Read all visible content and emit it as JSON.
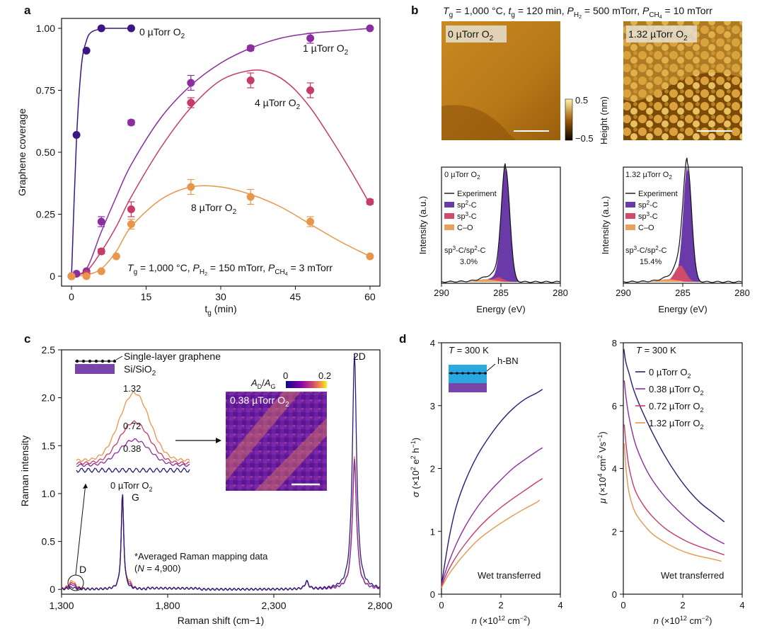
{
  "panels": {
    "a": {
      "letter": "a"
    },
    "b": {
      "letter": "b",
      "header": "Tg = 1,000 °C, tg = 120 min, PH2 = 500 mTorr, PCH4 = 10 mTorr"
    },
    "c": {
      "letter": "c"
    },
    "d": {
      "letter": "d"
    }
  },
  "chart_data": [
    {
      "id": "a",
      "type": "scatter",
      "title": "",
      "xlabel": "tg (min)",
      "ylabel": "Graphene coverage",
      "xlim": [
        -2,
        62
      ],
      "ylim": [
        -0.04,
        1.04
      ],
      "xticks": [
        0,
        15,
        30,
        45,
        60
      ],
      "yticks": [
        0,
        0.25,
        0.5,
        0.75,
        1.0
      ],
      "ytick_labels": [
        "0",
        "0.25",
        "0.50",
        "0.75",
        "1.00"
      ],
      "annotation": "Tg = 1,000 °C, PH2 = 150 mTorr, PCH4 = 3 mTorr",
      "series": [
        {
          "name": "0 µTorr O2",
          "color": "#3b1684",
          "x": [
            0,
            1,
            3,
            6,
            12
          ],
          "y": [
            0.0,
            0.57,
            0.91,
            1.0,
            1.0
          ],
          "err": [
            0,
            0,
            0,
            0,
            0
          ],
          "fit_x": [
            0,
            1,
            2,
            3,
            4,
            6,
            8,
            12
          ],
          "fit_y": [
            0.0,
            0.55,
            0.85,
            0.95,
            0.985,
            0.998,
            1.0,
            1.0
          ]
        },
        {
          "name": "1 µTorr O2",
          "color": "#8a2ea0",
          "x": [
            0,
            1,
            3,
            6,
            12,
            24,
            36,
            48,
            60
          ],
          "y": [
            0.0,
            0.01,
            0.02,
            0.22,
            0.62,
            0.78,
            0.92,
            0.96,
            1.0
          ],
          "err": [
            0,
            0,
            0,
            0.02,
            0.01,
            0.03,
            0.01,
            0.02,
            0
          ],
          "fit_x": [
            0,
            3,
            6,
            9,
            12,
            18,
            24,
            30,
            36,
            42,
            48,
            54,
            60
          ],
          "fit_y": [
            0.0,
            0.03,
            0.18,
            0.32,
            0.45,
            0.64,
            0.77,
            0.86,
            0.92,
            0.96,
            0.98,
            0.99,
            1.0
          ]
        },
        {
          "name": "4 µTorr O2",
          "color": "#c73a6a",
          "x": [
            0,
            3,
            6,
            12,
            24,
            36,
            48,
            60
          ],
          "y": [
            0.0,
            0.01,
            0.1,
            0.27,
            0.7,
            0.79,
            0.75,
            0.3
          ],
          "err": [
            0,
            0,
            0.01,
            0.03,
            0.02,
            0.03,
            0.03,
            0.01
          ],
          "fit_x": [
            0,
            3,
            6,
            9,
            12,
            18,
            24,
            30,
            36,
            40,
            44,
            48,
            52,
            56,
            60
          ],
          "fit_y": [
            0.0,
            0.02,
            0.1,
            0.2,
            0.32,
            0.52,
            0.68,
            0.79,
            0.83,
            0.82,
            0.77,
            0.68,
            0.56,
            0.43,
            0.29
          ]
        },
        {
          "name": "8 µTorr O2",
          "color": "#e8964a",
          "x": [
            0,
            3,
            6,
            9,
            12,
            24,
            36,
            48,
            60
          ],
          "y": [
            0.0,
            0.0,
            0.02,
            0.08,
            0.21,
            0.36,
            0.32,
            0.22,
            0.08
          ],
          "err": [
            0,
            0,
            0,
            0,
            0.02,
            0.03,
            0.03,
            0.02,
            0
          ],
          "fit_x": [
            0,
            3,
            6,
            9,
            12,
            18,
            24,
            30,
            36,
            42,
            48,
            54,
            60
          ],
          "fit_y": [
            0.0,
            0.005,
            0.03,
            0.1,
            0.2,
            0.31,
            0.36,
            0.36,
            0.33,
            0.28,
            0.21,
            0.14,
            0.08
          ]
        }
      ]
    },
    {
      "id": "b-xps-left",
      "type": "line",
      "label": "0 µTorr O2",
      "xlabel": "Energy (eV)",
      "ylabel": "Intensity (a.u.)",
      "xlim": [
        290,
        280
      ],
      "xticks": [
        290,
        285,
        280
      ],
      "legend": [
        "Experiment",
        "sp2-C",
        "sp3-C",
        "C–O"
      ],
      "ratio_label": "sp3-C/sp2-C",
      "ratio_value": "3.0%"
    },
    {
      "id": "b-xps-right",
      "type": "line",
      "label": "1.32 µTorr O2",
      "xlabel": "Energy (eV)",
      "ylabel": "Intensity (a.u.)",
      "xlim": [
        290,
        280
      ],
      "xticks": [
        290,
        285,
        280
      ],
      "legend": [
        "Experiment",
        "sp2-C",
        "sp3-C",
        "C–O"
      ],
      "ratio_label": "sp3-C/sp2-C",
      "ratio_value": "15.4%"
    },
    {
      "id": "b-afm",
      "type": "heatmap",
      "images": [
        "0 µTorr O2",
        "1.32 µTorr O2"
      ],
      "colorbar": {
        "label": "Height (nm)",
        "max": "0.5",
        "min": "−0.5"
      }
    },
    {
      "id": "c",
      "type": "line",
      "xlabel": "Raman shift (cm−1)",
      "ylabel": "Raman intensity",
      "xlim": [
        1300,
        2800
      ],
      "ylim": [
        -0.05,
        2.5
      ],
      "xticks": [
        1300,
        1800,
        2300,
        2800
      ],
      "xtick_labels": [
        "1,300",
        "1,800",
        "2,300",
        "2,800"
      ],
      "yticks": [
        0,
        0.5,
        1.0,
        1.5,
        2.0,
        2.5
      ],
      "ytick_labels": [
        "0",
        "0.5",
        "1.0",
        "1.5",
        "2.0",
        "2.5"
      ],
      "peaks": {
        "D": "D",
        "G": "G",
        "2D": "2D"
      },
      "note": "*Averaged Raman mapping data",
      "note2": "(N = 4,900)",
      "inset_labels": [
        "1.32",
        "0.72",
        "0.38",
        "0 µTorr O2"
      ],
      "schematic": [
        "Single-layer graphene",
        "Si/SiO2"
      ],
      "map": {
        "title": "AD/AG",
        "min": "0",
        "max": "0.2",
        "label": "0.38 µTorr O2"
      },
      "series": [
        {
          "name": "0 µTorr O2",
          "color": "#2a1b7a"
        },
        {
          "name": "0.38 µTorr O2",
          "color": "#8a2ea0"
        },
        {
          "name": "0.72 µTorr O2",
          "color": "#c73a6a"
        },
        {
          "name": "1.32 µTorr O2",
          "color": "#e8964a"
        }
      ]
    },
    {
      "id": "d-left",
      "type": "line",
      "xlabel": "n (×10^12 cm−2)",
      "ylabel": "σ (×10^2 e^2 h−1)",
      "xlim": [
        0,
        4
      ],
      "ylim": [
        0,
        4
      ],
      "xticks": [
        0,
        2,
        4
      ],
      "yticks": [
        0,
        1,
        2,
        3,
        4
      ],
      "annotation": "T = 300 K",
      "inset_label": "h-BN",
      "note": "Wet transferred",
      "series": [
        {
          "name": "0 µTorr O2",
          "color": "#2a1b7a",
          "x": [
            0,
            0.15,
            0.3,
            0.5,
            0.8,
            1.2,
            1.6,
            2.0,
            2.4,
            2.8,
            3.2,
            3.4
          ],
          "y": [
            0.15,
            0.6,
            1.0,
            1.4,
            1.8,
            2.2,
            2.5,
            2.75,
            2.95,
            3.1,
            3.2,
            3.26
          ]
        },
        {
          "name": "0.38 µTorr O2",
          "color": "#8a2ea0",
          "x": [
            0,
            0.2,
            0.5,
            0.8,
            1.2,
            1.6,
            2.0,
            2.4,
            2.8,
            3.2,
            3.4
          ],
          "y": [
            0.15,
            0.45,
            0.8,
            1.08,
            1.38,
            1.62,
            1.82,
            2.0,
            2.14,
            2.27,
            2.33
          ]
        },
        {
          "name": "0.72 µTorr O2",
          "color": "#c73a6a",
          "x": [
            0,
            0.2,
            0.5,
            0.8,
            1.2,
            1.6,
            2.0,
            2.4,
            2.8,
            3.2,
            3.4
          ],
          "y": [
            0.12,
            0.35,
            0.6,
            0.8,
            1.03,
            1.22,
            1.38,
            1.52,
            1.65,
            1.78,
            1.84
          ]
        },
        {
          "name": "1.32 µTorr O2",
          "color": "#e8964a",
          "x": [
            0,
            0.2,
            0.5,
            0.8,
            1.2,
            1.6,
            2.0,
            2.4,
            2.8,
            3.2,
            3.3
          ],
          "y": [
            0.1,
            0.28,
            0.48,
            0.65,
            0.85,
            1.0,
            1.13,
            1.25,
            1.36,
            1.46,
            1.5
          ]
        }
      ]
    },
    {
      "id": "d-right",
      "type": "line",
      "xlabel": "n (×10^12 cm−2)",
      "ylabel": "μ (×10^4 cm^2 Vs−1)",
      "xlim": [
        0,
        4
      ],
      "ylim": [
        0,
        8
      ],
      "xticks": [
        0,
        2,
        4
      ],
      "yticks": [
        0,
        2,
        4,
        6,
        8
      ],
      "annotation": "T = 300 K",
      "note": "Wet transferred",
      "series": [
        {
          "name": "0 µTorr O2",
          "color": "#2a1b7a",
          "x": [
            0.02,
            0.08,
            0.2,
            0.35,
            0.6,
            1.0,
            1.4,
            1.8,
            2.2,
            2.6,
            3.0,
            3.4
          ],
          "y": [
            7.8,
            7.4,
            7.0,
            6.5,
            5.9,
            5.1,
            4.4,
            3.8,
            3.3,
            2.9,
            2.6,
            2.3
          ]
        },
        {
          "name": "0.38 µTorr O2",
          "color": "#8a2ea0",
          "x": [
            0.03,
            0.1,
            0.2,
            0.4,
            0.7,
            1.0,
            1.4,
            1.8,
            2.2,
            2.6,
            3.0,
            3.4
          ],
          "y": [
            6.8,
            6.2,
            5.6,
            4.8,
            4.1,
            3.6,
            3.1,
            2.7,
            2.35,
            2.05,
            1.8,
            1.6
          ]
        },
        {
          "name": "0.72 µTorr O2",
          "color": "#c73a6a",
          "x": [
            0.03,
            0.1,
            0.2,
            0.4,
            0.7,
            1.0,
            1.4,
            1.8,
            2.2,
            2.6,
            3.0,
            3.4
          ],
          "y": [
            5.4,
            4.7,
            4.0,
            3.3,
            2.8,
            2.45,
            2.1,
            1.85,
            1.65,
            1.5,
            1.38,
            1.25
          ]
        },
        {
          "name": "1.32 µTorr O2",
          "color": "#e8964a",
          "x": [
            0.03,
            0.1,
            0.2,
            0.4,
            0.7,
            1.0,
            1.4,
            1.8,
            2.2,
            2.6,
            3.0,
            3.3
          ],
          "y": [
            4.8,
            3.9,
            3.2,
            2.6,
            2.2,
            1.9,
            1.65,
            1.45,
            1.3,
            1.2,
            1.12,
            1.05
          ]
        }
      ]
    }
  ]
}
